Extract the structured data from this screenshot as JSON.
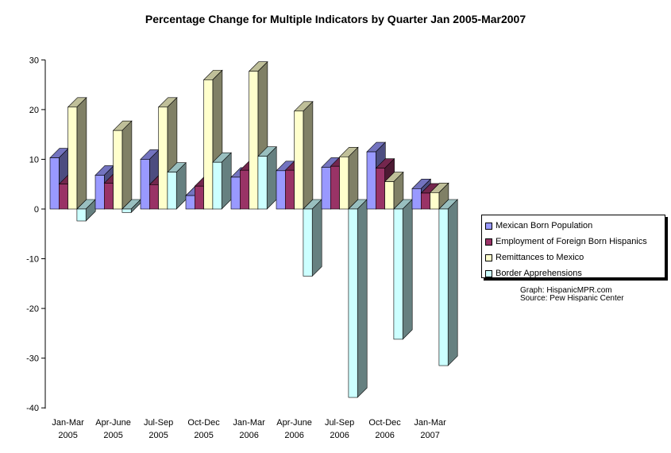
{
  "chart_data": {
    "type": "bar",
    "title": "Percentage Change for Multiple Indicators by Quarter Jan 2005-Mar2007",
    "xlabel": "",
    "ylabel": "",
    "ylim": [
      -40,
      30
    ],
    "y_ticks": [
      30,
      20,
      10,
      0,
      -10,
      -20,
      -30,
      -40
    ],
    "categories": [
      [
        "Jan-Mar",
        "2005"
      ],
      [
        "Apr-June",
        "2005"
      ],
      [
        "Jul-Sep",
        "2005"
      ],
      [
        "Oct-Dec",
        "2005"
      ],
      [
        "Jan-Mar",
        "2006"
      ],
      [
        "Apr-June",
        "2006"
      ],
      [
        "Jul-Sep",
        "2006"
      ],
      [
        "Oct-Dec",
        "2006"
      ],
      [
        "Jan-Mar",
        "2007"
      ]
    ],
    "series": [
      {
        "name": "Mexican Born Population",
        "color": "#9999ff",
        "values": [
          10.3,
          6.8,
          10.0,
          2.7,
          6.4,
          7.7,
          8.4,
          11.5,
          4.1
        ]
      },
      {
        "name": "Employment of Foreign Born Hispanics",
        "color": "#993366",
        "values": [
          5.0,
          5.2,
          4.9,
          4.6,
          7.8,
          7.8,
          8.6,
          8.2,
          3.2
        ]
      },
      {
        "name": "Remittances to Mexico",
        "color": "#ffffcc",
        "values": [
          20.5,
          15.8,
          20.5,
          26.0,
          27.7,
          19.7,
          10.5,
          5.5,
          3.3
        ]
      },
      {
        "name": "Border Apprehensions",
        "color": "#ccffff",
        "values": [
          -2.4,
          -0.7,
          7.4,
          9.4,
          10.6,
          -13.5,
          -37.9,
          -26.2,
          -31.5
        ]
      }
    ],
    "grid": false,
    "legend_position": "right"
  },
  "credits": {
    "graph": "Graph: HispanicMPR.com",
    "source": "Source: Pew Hispanic Center"
  }
}
